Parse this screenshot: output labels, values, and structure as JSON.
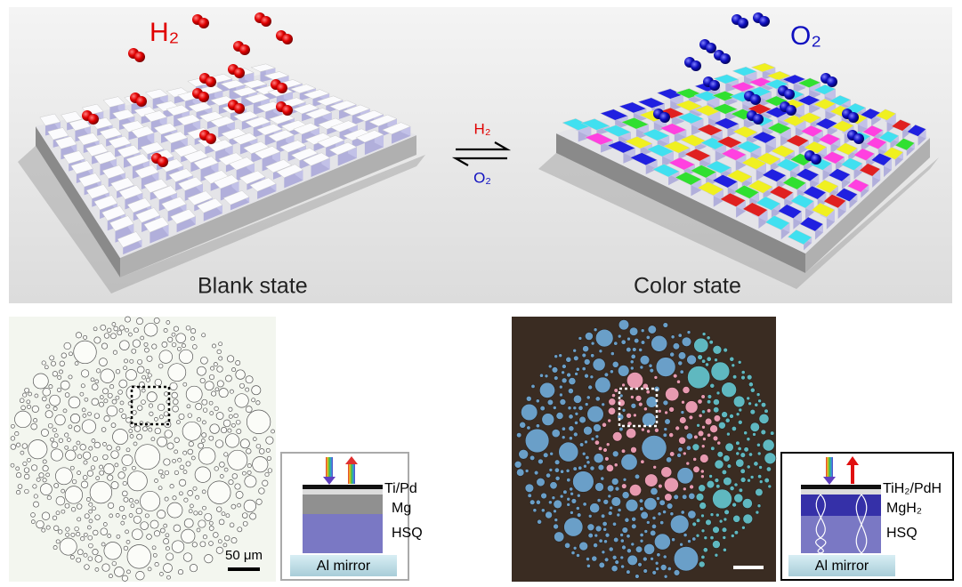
{
  "top": {
    "h2_label": "H₂",
    "o2_label": "O₂",
    "blank_label": "Blank state",
    "color_label": "Color state",
    "arrow_top": "H₂",
    "arrow_bottom": "O₂"
  },
  "left_inset": {
    "layers": [
      "Ti/Pd",
      "Mg",
      "HSQ"
    ],
    "base": "Al mirror",
    "scale_bar": "50 μm"
  },
  "right_inset": {
    "layers": [
      "TiH₂/PdH",
      "MgH₂",
      "HSQ"
    ],
    "base": "Al mirror"
  }
}
